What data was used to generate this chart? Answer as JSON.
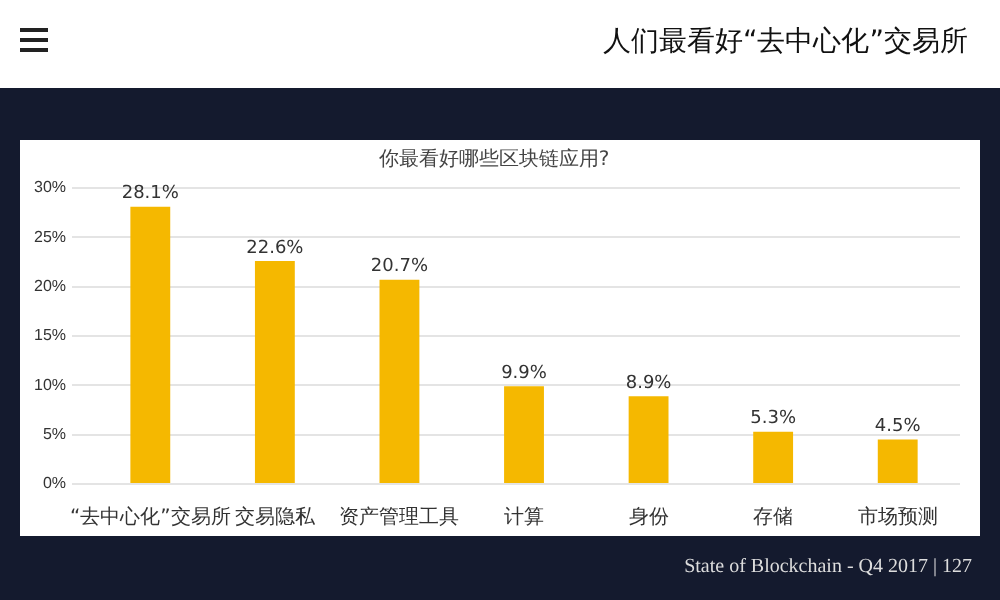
{
  "chart_data": {
    "type": "bar",
    "title": "人们最看好“去中心化”交易所",
    "subtitle": "你最看好哪些区块链应用?",
    "categories": [
      "“去中心化”交易所",
      "交易隐私",
      "资产管理工具",
      "计算",
      "身份",
      "存储",
      "市场预测"
    ],
    "values": [
      28.1,
      22.6,
      20.7,
      9.9,
      8.9,
      5.3,
      4.5
    ],
    "color": "#f5b800",
    "ylim": [
      0,
      30
    ],
    "yticks": [
      {
        "value": 0,
        "label": "0%"
      },
      {
        "value": 5,
        "label": "5%"
      },
      {
        "value": 10,
        "label": "10%"
      },
      {
        "value": 15,
        "label": "15%"
      },
      {
        "value": 20,
        "label": "20%"
      },
      {
        "value": 25,
        "label": "25%"
      },
      {
        "value": 30,
        "label": "30%"
      }
    ],
    "value_labels": [
      "28.1%",
      "22.6%",
      "20.7%",
      "9.9%",
      "8.9%",
      "5.3%",
      "4.5%"
    ],
    "grid": "y",
    "legend": false,
    "annotations": [
      "State of Blockchain - Q4 2017 | 127"
    ]
  }
}
